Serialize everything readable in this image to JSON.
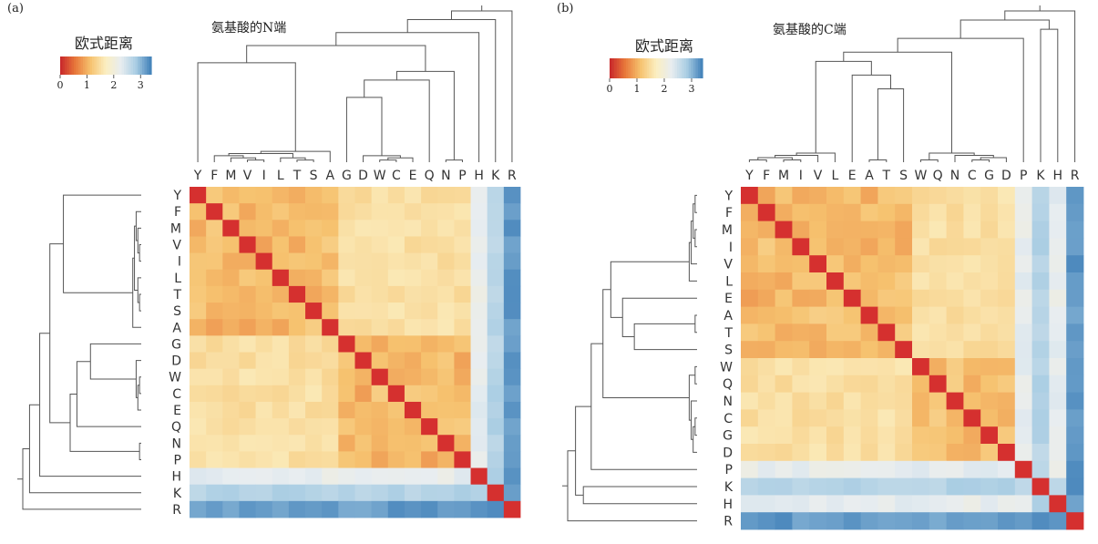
{
  "panels": [
    {
      "label": "(a)",
      "title": "氨基酸的N端",
      "legend_title": "欧式距离",
      "legend_ticks": [
        "0",
        "1",
        "2",
        "3"
      ]
    },
    {
      "label": "(b)",
      "title": "氨基酸的C端",
      "legend_title": "欧式距离",
      "legend_ticks": [
        "0",
        "1",
        "2",
        "3"
      ]
    }
  ],
  "colors": {
    "scale": [
      "#c8262b",
      "#e8783a",
      "#f6c26f",
      "#fbeec0",
      "#e8edf0",
      "#a9cde3",
      "#3f7fb8"
    ],
    "diagonal": "#d5302f",
    "dendrogram": "#555555"
  },
  "chart_data": [
    {
      "type": "heatmap",
      "title": "氨基酸的N端",
      "legend_title": "欧式距离",
      "value_range": [
        0,
        3.4
      ],
      "legend_ticks": [
        0,
        1,
        2,
        3
      ],
      "order": [
        "Y",
        "F",
        "M",
        "V",
        "I",
        "L",
        "T",
        "S",
        "A",
        "G",
        "D",
        "W",
        "C",
        "E",
        "Q",
        "N",
        "P",
        "H",
        "K",
        "R"
      ],
      "clusters": [
        [
          "Y",
          "F",
          "M",
          "V",
          "I",
          "L",
          "T",
          "S",
          "A"
        ],
        [
          "G",
          "D",
          "W",
          "C",
          "E",
          "Q",
          "N",
          "P"
        ],
        [
          "H"
        ],
        [
          "K"
        ],
        [
          "R"
        ]
      ],
      "levels": [
        0.9,
        1.5,
        1.9,
        2.1,
        2.3,
        2.7,
        3.0,
        3.3,
        3.5
      ],
      "legend_placement": "top-left"
    },
    {
      "type": "heatmap",
      "title": "氨基酸的C端",
      "legend_title": "欧式距离",
      "value_range": [
        0,
        3.4
      ],
      "legend_ticks": [
        0,
        1,
        2,
        3
      ],
      "order": [
        "Y",
        "F",
        "M",
        "I",
        "V",
        "L",
        "E",
        "A",
        "T",
        "S",
        "W",
        "Q",
        "N",
        "C",
        "G",
        "D",
        "P",
        "K",
        "H",
        "R"
      ],
      "clusters": [
        [
          "Y",
          "F",
          "M",
          "I",
          "V",
          "L",
          "E",
          "A",
          "T",
          "S"
        ],
        [
          "W",
          "Q",
          "N",
          "C",
          "G",
          "D"
        ],
        [
          "P"
        ],
        [
          "K",
          "H"
        ],
        [
          "R"
        ]
      ],
      "levels": [
        1.0,
        1.6,
        1.9,
        2.2,
        2.4,
        2.7,
        2.9,
        3.1,
        3.3
      ],
      "legend_placement": "top-left"
    }
  ]
}
